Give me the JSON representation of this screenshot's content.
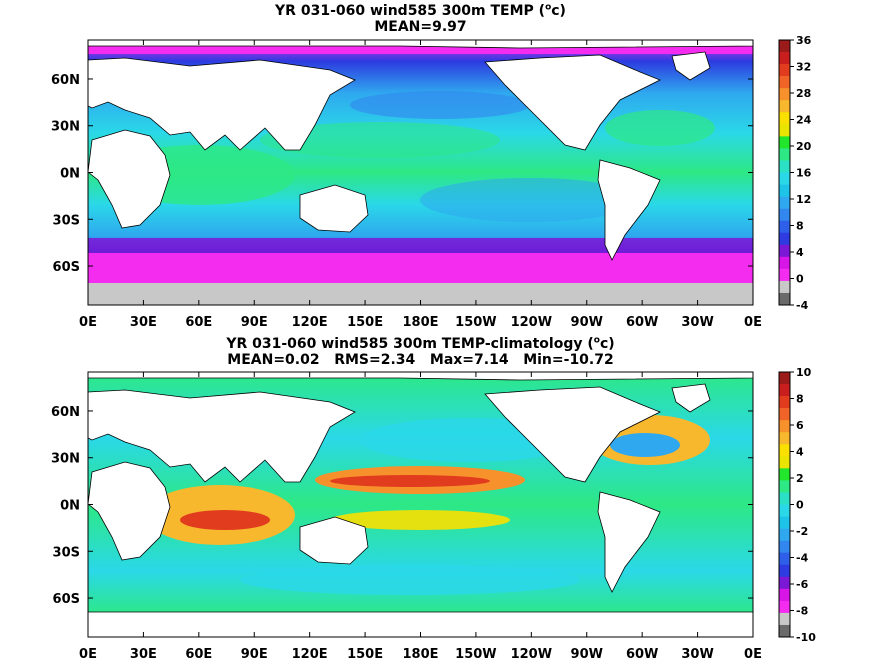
{
  "chart_data": [
    {
      "type": "heatmap",
      "title_prefix": "YR 031-060 wind585 300m TEMP (",
      "title_sup": "o",
      "title_suffix": "c)",
      "subtitle": "MEAN=9.97",
      "x_ticks": [
        "0E",
        "30E",
        "60E",
        "90E",
        "120E",
        "150E",
        "180E",
        "150W",
        "120W",
        "90W",
        "60W",
        "30W",
        "0E"
      ],
      "y_ticks": [
        "60N",
        "30N",
        "0N",
        "30S",
        "60S"
      ],
      "colorbar": {
        "ticks": [
          "36",
          "32",
          "28",
          "24",
          "20",
          "16",
          "12",
          "8",
          "4",
          "0",
          "-4"
        ],
        "levels": 20,
        "colors_top_to_bottom": [
          "#9b1b1b",
          "#c81e1e",
          "#e23c1e",
          "#f06428",
          "#f6912c",
          "#f8b82e",
          "#fae000",
          "#e9e400",
          "#21e62c",
          "#2de884",
          "#2ce0c6",
          "#2ad8e8",
          "#1ec4e8",
          "#2fa8ef",
          "#3287ee",
          "#2d5fe8",
          "#2d3be0",
          "#7b18d6",
          "#d615e6",
          "#f42cf0",
          "#c8c8c8",
          "#6a6a6a"
        ]
      }
    },
    {
      "type": "heatmap",
      "title_prefix": "YR 031-060 wind585 300m TEMP-climatology (",
      "title_sup": "o",
      "title_suffix": "c)",
      "subtitle": "MEAN=0.02   RMS=2.34   Max=7.14   Min=-10.72",
      "x_ticks": [
        "0E",
        "30E",
        "60E",
        "90E",
        "120E",
        "150E",
        "180E",
        "150W",
        "120W",
        "90W",
        "60W",
        "30W",
        "0E"
      ],
      "y_ticks": [
        "60N",
        "30N",
        "0N",
        "30S",
        "60S"
      ],
      "colorbar": {
        "ticks": [
          "10",
          "8",
          "6",
          "4",
          "2",
          "0",
          "-2",
          "-4",
          "-6",
          "-8",
          "-10"
        ],
        "levels": 20,
        "colors_top_to_bottom": [
          "#9b1b1b",
          "#c81e1e",
          "#e23c1e",
          "#f06428",
          "#f6912c",
          "#f8b82e",
          "#fae000",
          "#e9e400",
          "#21e62c",
          "#2de884",
          "#2ce0c6",
          "#2ad8e8",
          "#1ec4e8",
          "#2fa8ef",
          "#3287ee",
          "#2d5fe8",
          "#2d3be0",
          "#7b18d6",
          "#d615e6",
          "#f42cf0",
          "#c8c8c8",
          "#6a6a6a"
        ]
      }
    }
  ]
}
